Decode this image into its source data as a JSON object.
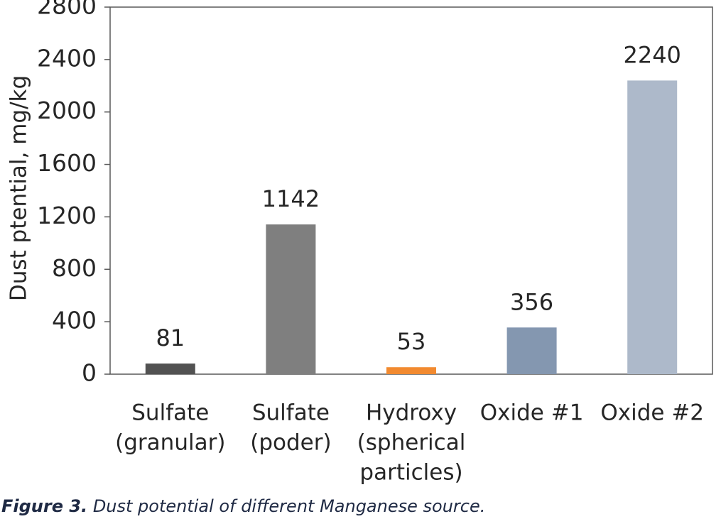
{
  "chart_data": {
    "type": "bar",
    "ylabel": "Dust ptential, mg/kg",
    "categories": [
      [
        "Sulfate",
        "(granular)"
      ],
      [
        "Sulfate",
        "(poder)"
      ],
      [
        "Hydroxy",
        "(spherical",
        "particles)"
      ],
      [
        "Oxide #1"
      ],
      [
        "Oxide #2"
      ]
    ],
    "values": [
      81,
      1142,
      53,
      356,
      2240
    ],
    "colors": [
      "#525252",
      "#7f7f7f",
      "#f28a30",
      "#8497b0",
      "#adb9ca"
    ],
    "ylim": [
      0,
      2800
    ],
    "yticks": [
      0,
      400,
      800,
      1200,
      1600,
      2000,
      2400,
      2800
    ],
    "grid": false
  },
  "caption": {
    "label": "Figure 3.",
    "text": "Dust potential of different Manganese source."
  }
}
